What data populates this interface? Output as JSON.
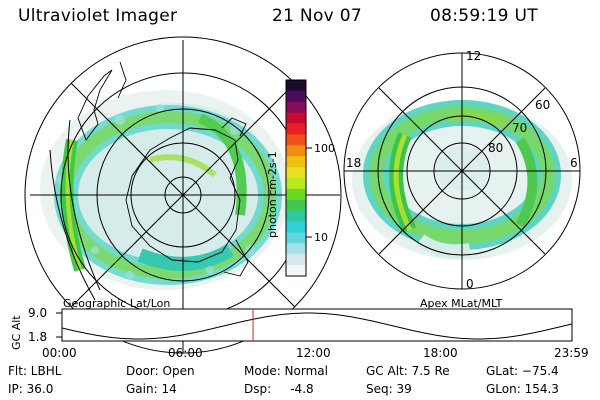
{
  "header": {
    "instrument": "Ultraviolet Imager",
    "date": "21 Nov 07",
    "time": "08:59:19 UT"
  },
  "colorbar": {
    "ticks": [
      "100",
      "10"
    ],
    "unit": "photon cm<sup>-2</sup>s<sup>-1</sup>",
    "unit_text": "photon cm-2s-1",
    "colors": [
      "#1a0a2e",
      "#4a0a5e",
      "#8a0a5a",
      "#c80a30",
      "#e8202a",
      "#f0501a",
      "#f08c10",
      "#f0c010",
      "#e8e020",
      "#b8e820",
      "#6ad820",
      "#40c850",
      "#30c8a0",
      "#30d0d8",
      "#60d8e0",
      "#a8e0e8",
      "#d8e8ec",
      "#f4f6f6"
    ]
  },
  "left_map": {
    "label": "Geographic Lat/Lon"
  },
  "right_map": {
    "label": "Apex MLat/MLT",
    "mlt_labels": {
      "top": "12",
      "left": "18",
      "right": "6",
      "bottom": "0"
    },
    "lat_labels": [
      "60",
      "70",
      "80"
    ]
  },
  "timeline": {
    "ylabel": "GC Alt",
    "y_ticks": [
      "9.0",
      "1.8"
    ],
    "x_ticks": [
      "00:00",
      "06:00",
      "12:00",
      "18:00",
      "23:59"
    ],
    "current_hour": 8.99,
    "cursor_color": "#e02020"
  },
  "status": {
    "flt": "Flt: LBHL",
    "ip": "IP: 36.0",
    "door": "Door: Open",
    "gain": "Gain: 14",
    "mode": "Mode: Normal",
    "dsp": "Dsp:     -4.8",
    "gc_alt": "GC Alt: 7.5 Re",
    "seq": "Seq: 39",
    "glat": "GLat: −75.4",
    "glon": "GLon: 154.3"
  }
}
